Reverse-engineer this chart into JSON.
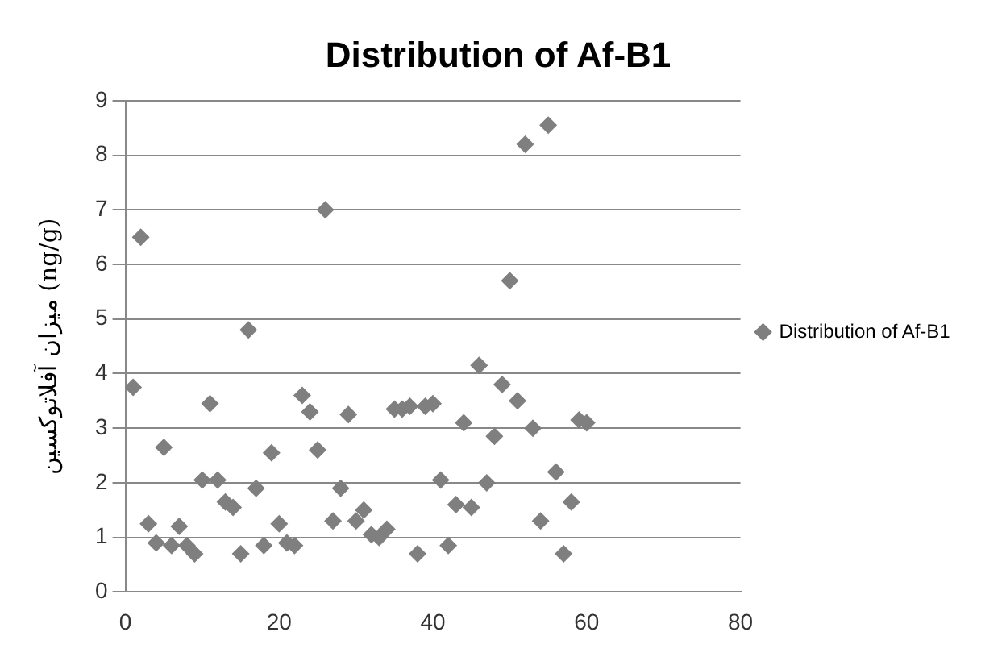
{
  "chart_data": {
    "type": "scatter",
    "title": "Distribution of Af-B1",
    "ylabel": "میزان آفلاتوکسین (ng/g)",
    "series": [
      {
        "name": "Distribution of Af-B1",
        "color": "#7f7f7f",
        "x": [
          1,
          2,
          3,
          4,
          5,
          6,
          7,
          8,
          9,
          10,
          11,
          12,
          13,
          14,
          15,
          16,
          17,
          18,
          19,
          20,
          21,
          22,
          23,
          24,
          25,
          26,
          27,
          28,
          29,
          30,
          31,
          32,
          33,
          34,
          35,
          36,
          37,
          38,
          39,
          40,
          41,
          42,
          43,
          44,
          45,
          46,
          47,
          48,
          49,
          50,
          51,
          52,
          53,
          54,
          55,
          56,
          57,
          58,
          59,
          60
        ],
        "values": [
          3.75,
          6.5,
          1.25,
          0.9,
          2.65,
          0.85,
          1.2,
          0.85,
          0.7,
          2.05,
          3.45,
          2.05,
          1.65,
          1.55,
          0.7,
          4.8,
          1.9,
          0.85,
          2.55,
          1.25,
          0.9,
          0.85,
          3.6,
          3.3,
          2.6,
          7.0,
          1.3,
          1.9,
          3.25,
          1.3,
          1.5,
          1.05,
          1.0,
          1.15,
          3.35,
          3.35,
          3.4,
          0.7,
          3.4,
          3.45,
          2.05,
          0.85,
          1.6,
          3.1,
          1.55,
          4.15,
          2.0,
          2.85,
          3.8,
          5.7,
          3.5,
          8.2,
          3.0,
          1.3,
          8.55,
          2.2,
          0.7,
          1.65,
          3.15,
          3.1
        ]
      }
    ],
    "xlim": [
      0,
      80
    ],
    "xticks": [
      0,
      20,
      40,
      60,
      80
    ],
    "ylim": [
      0,
      9
    ],
    "yticks": [
      0,
      1,
      2,
      3,
      4,
      5,
      6,
      7,
      8,
      9
    ],
    "grid": "y",
    "legend": "right",
    "marker": "diamond"
  }
}
